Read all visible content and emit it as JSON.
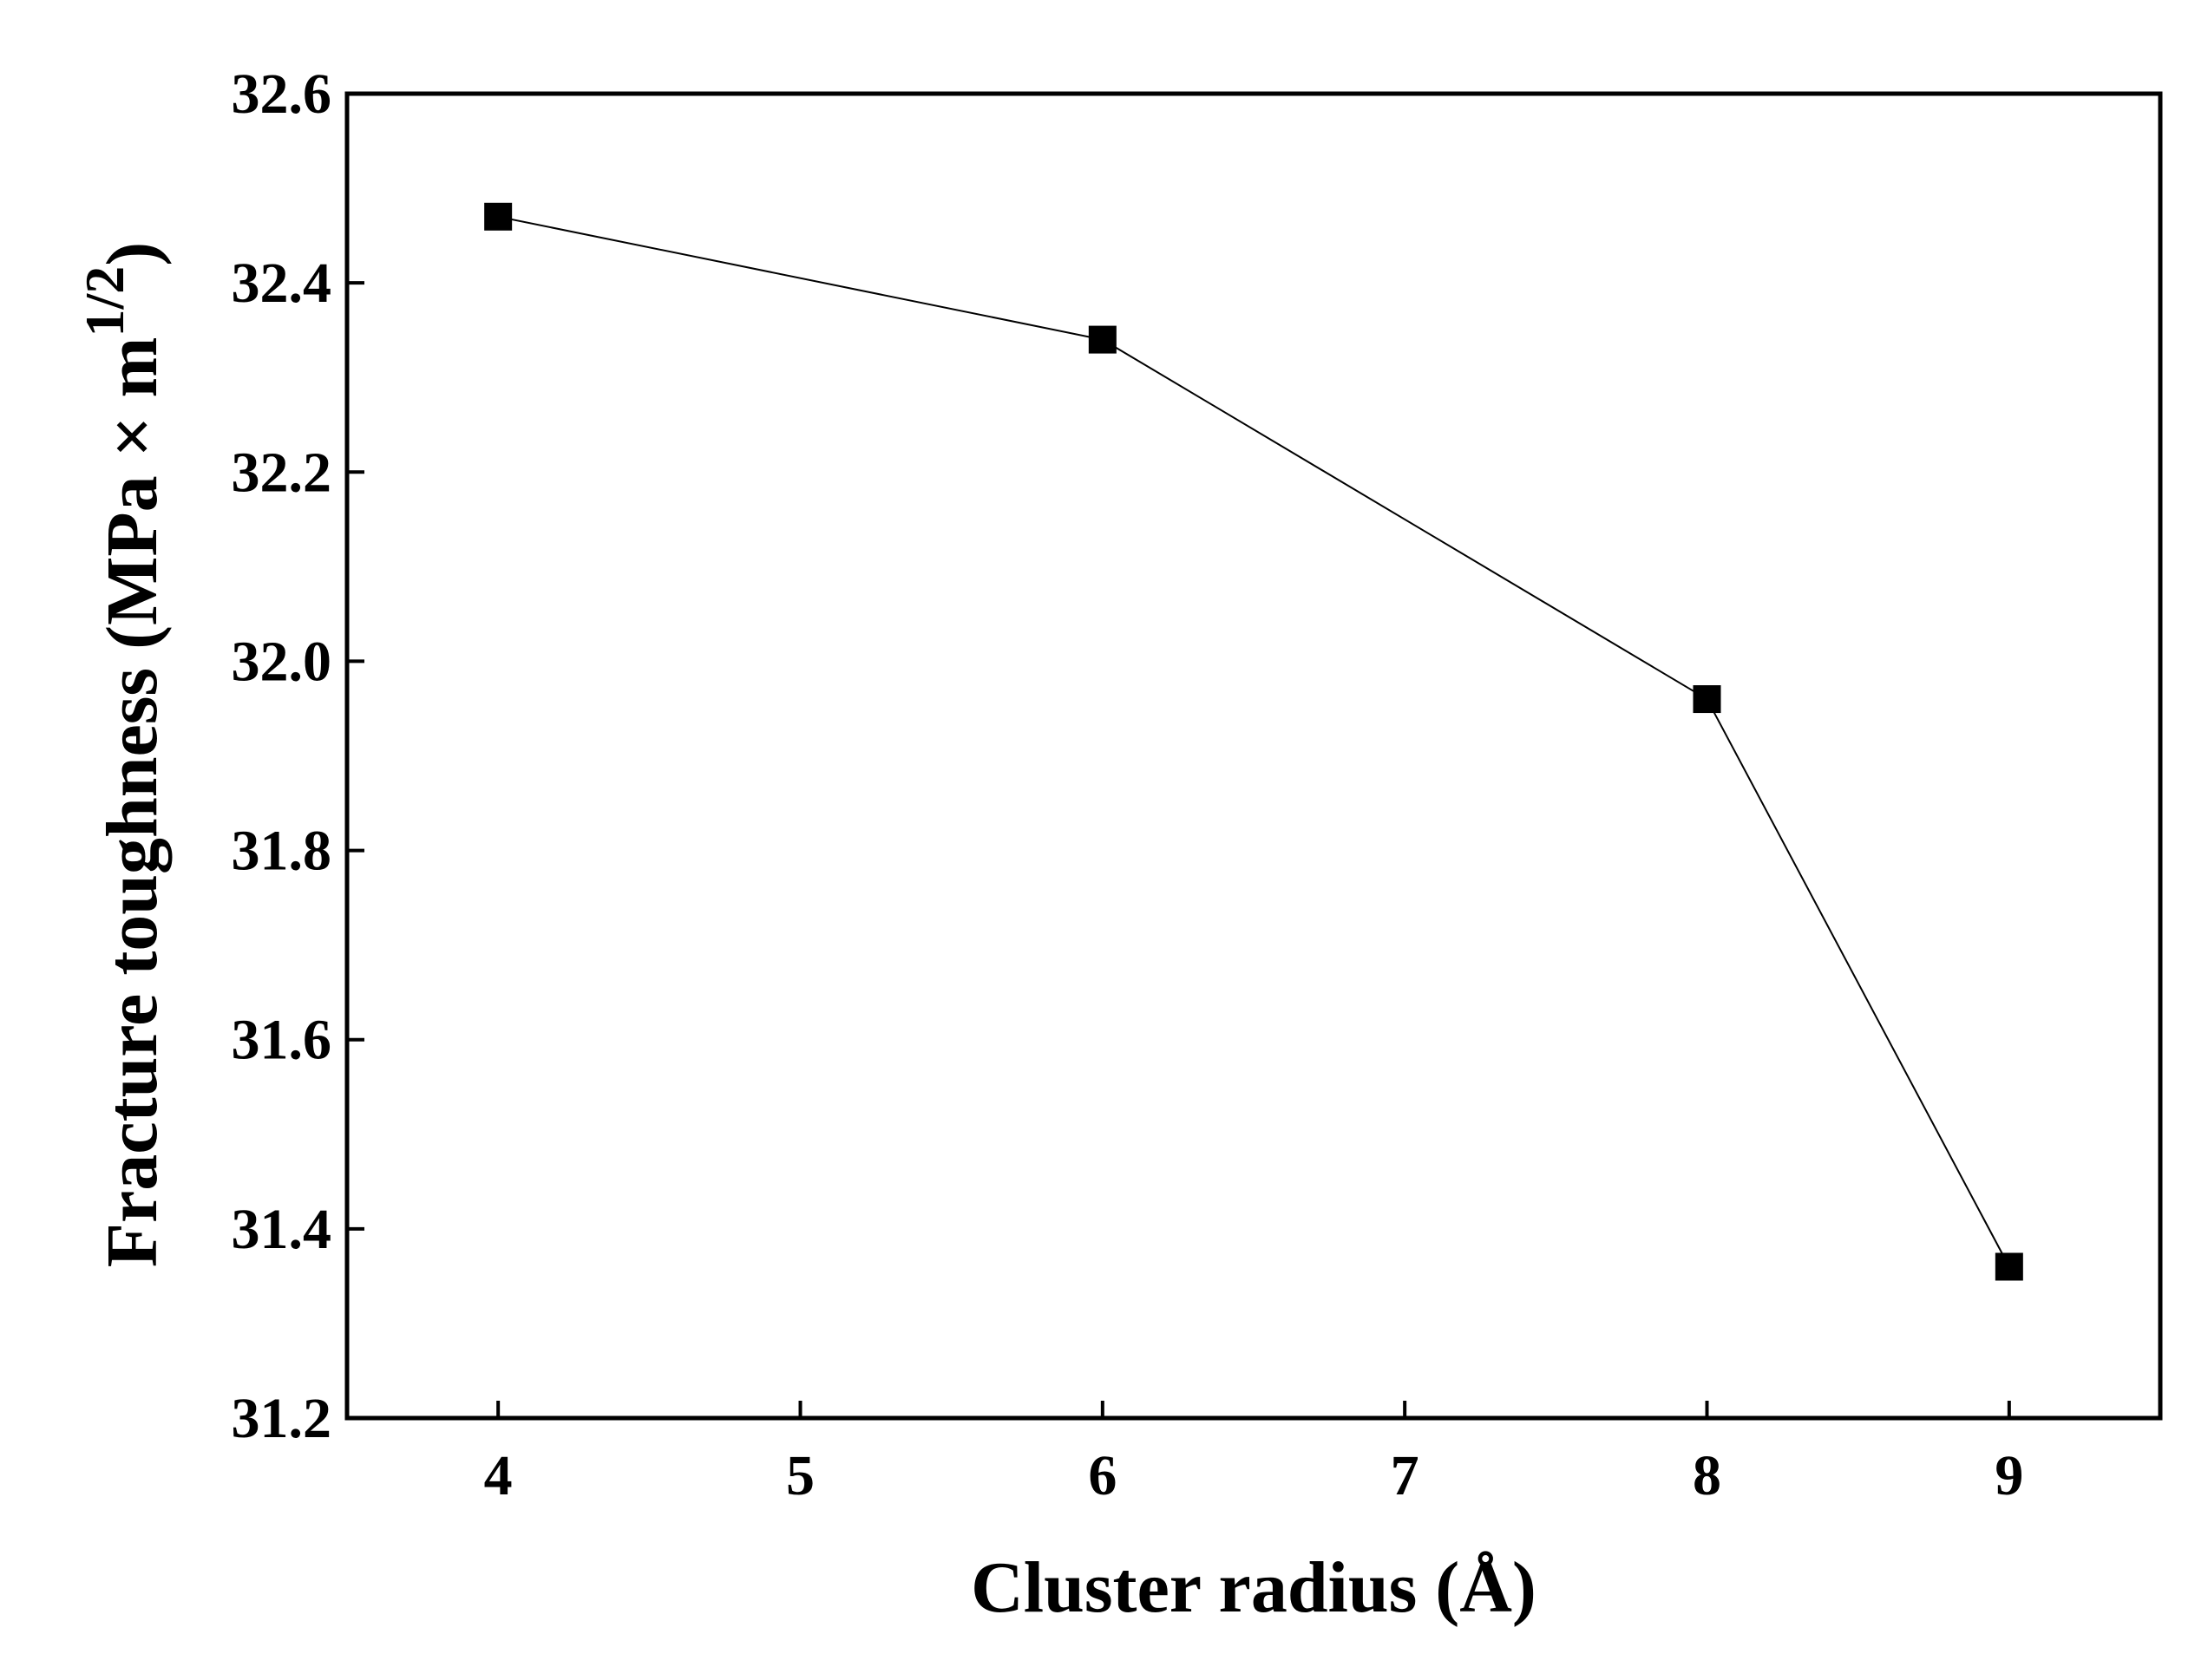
{
  "chart_data": {
    "type": "line",
    "xlabel": "Cluster radius (Å)",
    "ylabel": "Fracture toughness (MPa × m",
    "ylabel_superscript": "1/2",
    "ylabel_end": ")",
    "x": [
      4,
      6,
      8,
      9
    ],
    "series": [
      {
        "name": "Fracture toughness",
        "color": "#000000",
        "values": [
          32.47,
          32.34,
          31.96,
          31.36
        ]
      }
    ],
    "xlim": [
      3.5,
      9.5
    ],
    "xticks": [
      4,
      5,
      6,
      7,
      8,
      9
    ],
    "ylim": [
      31.2,
      32.6
    ],
    "yticks": [
      31.2,
      31.4,
      31.6,
      31.8,
      {
        "value": 32,
        "label": "32.0"
      },
      32.2,
      32.4,
      32.6
    ],
    "marker": "square",
    "grid": false
  }
}
